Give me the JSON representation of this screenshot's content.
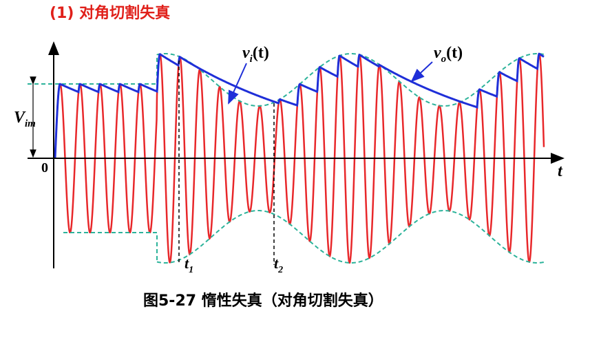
{
  "heading": "(1) 对角切割失真",
  "labels": {
    "vi": {
      "main": "v",
      "sub": "i",
      "rest": "(t)"
    },
    "vo": {
      "main": "v",
      "sub": "o",
      "rest": "(t)"
    },
    "vim": {
      "main": "V",
      "sub": "im"
    },
    "origin": "0",
    "t_axis": "t",
    "t1": {
      "main": "t",
      "sub": "1"
    },
    "t2": {
      "main": "t",
      "sub": "2"
    }
  },
  "caption": "图5-27 惰性失真（对角切割失真）"
}
